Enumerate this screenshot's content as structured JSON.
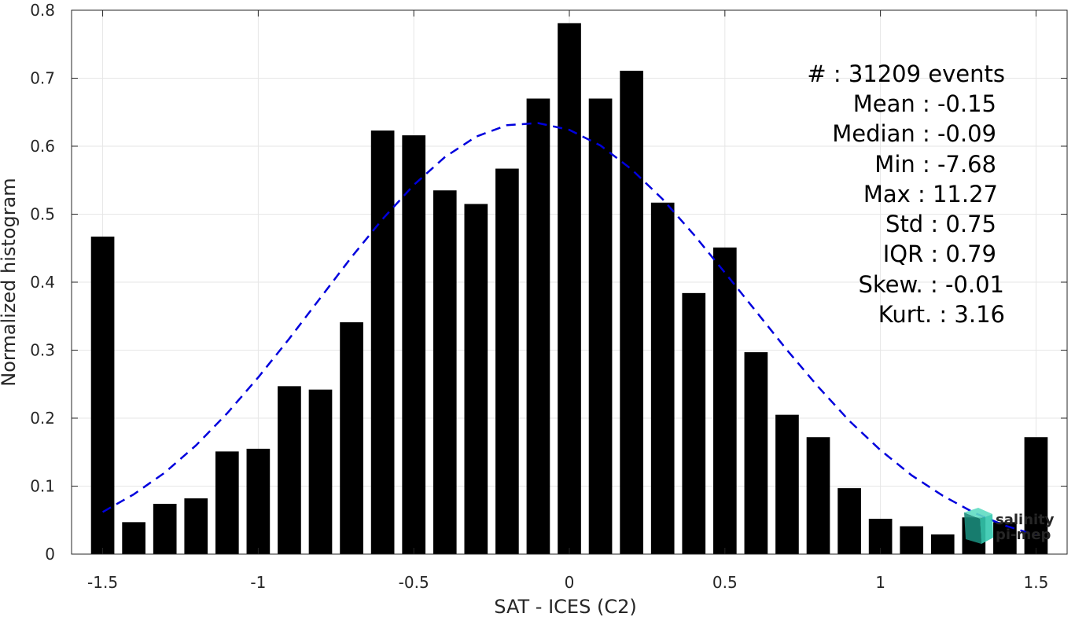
{
  "chart_data": {
    "type": "bar",
    "xlabel": "SAT - ICES (C2)",
    "ylabel": "Normalized histogram",
    "xlim": [
      -1.6,
      1.6
    ],
    "ylim": [
      0,
      0.8
    ],
    "xticks": [
      -1.5,
      -1,
      -0.5,
      0,
      0.5,
      1,
      1.5
    ],
    "xtick_labels": [
      "-1.5",
      "-1",
      "-0.5",
      "0",
      "0.5",
      "1",
      "1.5"
    ],
    "yticks": [
      0,
      0.1,
      0.2,
      0.3,
      0.4,
      0.5,
      0.6,
      0.7,
      0.8
    ],
    "ytick_labels": [
      "0",
      "0.1",
      "0.2",
      "0.3",
      "0.4",
      "0.5",
      "0.6",
      "0.7",
      "0.8"
    ],
    "grid": true,
    "bar_width": 0.075,
    "x": [
      -1.5,
      -1.4,
      -1.3,
      -1.2,
      -1.1,
      -1.0,
      -0.9,
      -0.8,
      -0.7,
      -0.6,
      -0.5,
      -0.4,
      -0.3,
      -0.2,
      -0.1,
      0.0,
      0.1,
      0.2,
      0.3,
      0.4,
      0.5,
      0.6,
      0.7,
      0.8,
      0.9,
      1.0,
      1.1,
      1.2,
      1.3,
      1.4,
      1.5
    ],
    "values": [
      0.467,
      0.047,
      0.074,
      0.082,
      0.151,
      0.155,
      0.247,
      0.242,
      0.341,
      0.623,
      0.616,
      0.535,
      0.515,
      0.567,
      0.67,
      0.781,
      0.67,
      0.711,
      0.517,
      0.384,
      0.451,
      0.297,
      0.205,
      0.172,
      0.097,
      0.052,
      0.041,
      0.029,
      0.054,
      0.047,
      0.172
    ],
    "bar_color": "#000000",
    "fit_curve": {
      "style": "dashed",
      "color": "#0000dd",
      "x": [
        -1.5,
        -1.4,
        -1.3,
        -1.2,
        -1.1,
        -1.0,
        -0.9,
        -0.8,
        -0.7,
        -0.6,
        -0.5,
        -0.4,
        -0.3,
        -0.2,
        -0.1,
        0.0,
        0.1,
        0.2,
        0.3,
        0.4,
        0.5,
        0.6,
        0.7,
        0.8,
        0.9,
        1.0,
        1.1,
        1.2,
        1.3,
        1.4,
        1.5
      ],
      "y": [
        0.062,
        0.088,
        0.12,
        0.16,
        0.207,
        0.26,
        0.317,
        0.377,
        0.437,
        0.493,
        0.543,
        0.584,
        0.614,
        0.631,
        0.634,
        0.624,
        0.601,
        0.566,
        0.522,
        0.47,
        0.414,
        0.357,
        0.3,
        0.246,
        0.196,
        0.153,
        0.116,
        0.086,
        0.061,
        0.042,
        0.028
      ]
    }
  },
  "stats": {
    "events": "#  : 31209 events",
    "mean": "Mean : -0.15",
    "median": "Median : -0.09",
    "min": "Min : -7.68",
    "max": "Max : 11.27",
    "std": "Std : 0.75",
    "iqr": "IQR : 0.79",
    "skew": "Skew. : -0.01",
    "kurt": "Kurt. : 3.16"
  },
  "logo": {
    "word1": "salinity",
    "word2": "pi-mep",
    "color_dark": "#1a8a7a",
    "color_light": "#34c8ae"
  }
}
